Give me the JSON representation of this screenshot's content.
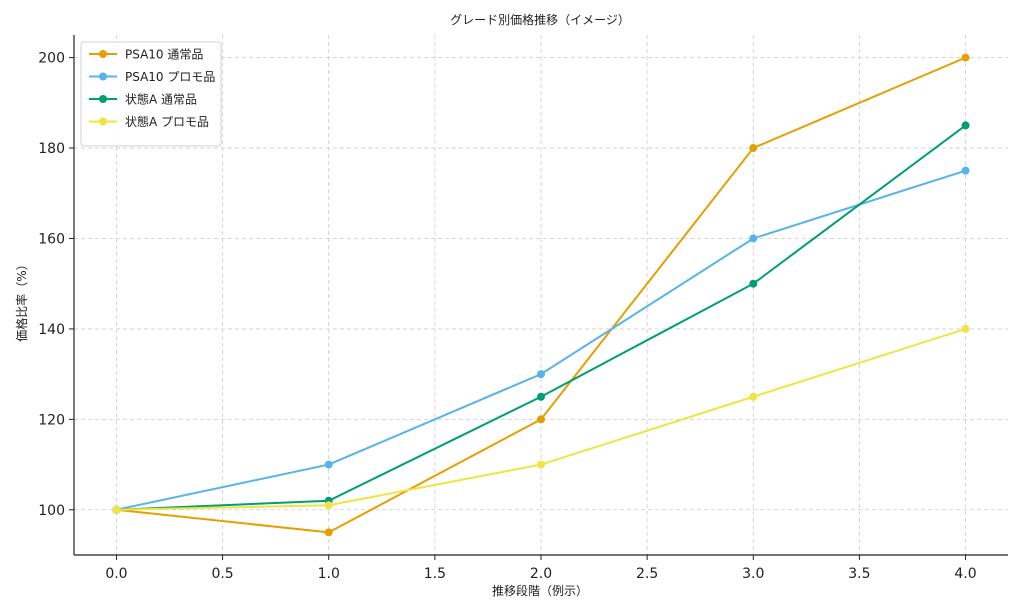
{
  "chart_data": {
    "type": "line",
    "title": "グレード別価格推移（イメージ）",
    "xlabel": "推移段階（例示）",
    "ylabel": "価格比率（%）",
    "x": [
      0,
      1,
      2,
      3,
      4
    ],
    "xlim": [
      -0.2,
      4.2
    ],
    "ylim": [
      90,
      205
    ],
    "xticks": [
      "0.0",
      "0.5",
      "1.0",
      "1.5",
      "2.0",
      "2.5",
      "3.0",
      "3.5",
      "4.0"
    ],
    "xtick_values": [
      0,
      0.5,
      1,
      1.5,
      2,
      2.5,
      3,
      3.5,
      4
    ],
    "yticks": [
      "100",
      "120",
      "140",
      "160",
      "180",
      "200"
    ],
    "ytick_values": [
      100,
      120,
      140,
      160,
      180,
      200
    ],
    "grid": true,
    "legend_position": "top-left",
    "series": [
      {
        "name": "PSA10 通常品",
        "color": "#E69F00",
        "values": [
          100,
          95,
          120,
          180,
          200
        ]
      },
      {
        "name": "PSA10 プロモ品",
        "color": "#56B4E9",
        "values": [
          100,
          110,
          130,
          160,
          175
        ]
      },
      {
        "name": "状態A 通常品",
        "color": "#009E73",
        "values": [
          100,
          102,
          125,
          150,
          185
        ]
      },
      {
        "name": "状態A プロモ品",
        "color": "#F0E442",
        "values": [
          100,
          101,
          110,
          125,
          140
        ]
      }
    ]
  }
}
